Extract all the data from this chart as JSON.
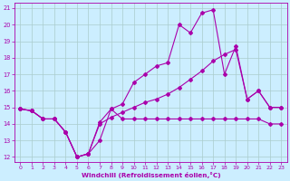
{
  "xlabel": "Windchill (Refroidissement éolien,°C)",
  "background_color": "#cceeff",
  "grid_color": "#aacccc",
  "line_color": "#aa00aa",
  "xlim": [
    -0.5,
    23.5
  ],
  "ylim": [
    11.7,
    21.3
  ],
  "xticks": [
    0,
    1,
    2,
    3,
    4,
    5,
    6,
    7,
    8,
    9,
    10,
    11,
    12,
    13,
    14,
    15,
    16,
    17,
    18,
    19,
    20,
    21,
    22,
    23
  ],
  "yticks": [
    12,
    13,
    14,
    15,
    16,
    17,
    18,
    19,
    20,
    21
  ],
  "series1_x": [
    0,
    1,
    2,
    3,
    4,
    5,
    6,
    7,
    8,
    9,
    10,
    11,
    12,
    13,
    14,
    15,
    16,
    17,
    18,
    19,
    20,
    21,
    22,
    23
  ],
  "series1_y": [
    14.9,
    14.8,
    14.3,
    14.3,
    13.5,
    12.0,
    12.2,
    14.1,
    14.9,
    14.3,
    14.3,
    14.3,
    14.3,
    14.3,
    14.3,
    14.3,
    14.3,
    14.3,
    14.3,
    14.3,
    14.3,
    14.3,
    14.0,
    14.0
  ],
  "series2_x": [
    0,
    1,
    2,
    3,
    4,
    5,
    6,
    7,
    8,
    9,
    10,
    11,
    12,
    13,
    14,
    15,
    16,
    17,
    18,
    19,
    20,
    21,
    22,
    23
  ],
  "series2_y": [
    14.9,
    14.8,
    14.3,
    14.3,
    13.5,
    12.0,
    12.2,
    13.0,
    14.9,
    15.2,
    16.5,
    17.0,
    17.5,
    17.7,
    20.0,
    19.5,
    20.7,
    20.9,
    17.0,
    18.7,
    15.5,
    16.0,
    15.0,
    15.0
  ],
  "series3_x": [
    0,
    1,
    2,
    3,
    4,
    5,
    6,
    7,
    8,
    9,
    10,
    11,
    12,
    13,
    14,
    15,
    16,
    17,
    18,
    19,
    20,
    21,
    22,
    23
  ],
  "series3_y": [
    14.9,
    14.8,
    14.3,
    14.3,
    13.5,
    12.0,
    12.2,
    14.0,
    14.4,
    14.7,
    15.0,
    15.3,
    15.5,
    15.8,
    16.2,
    16.7,
    17.2,
    17.8,
    18.2,
    18.5,
    15.5,
    16.0,
    15.0,
    15.0
  ]
}
